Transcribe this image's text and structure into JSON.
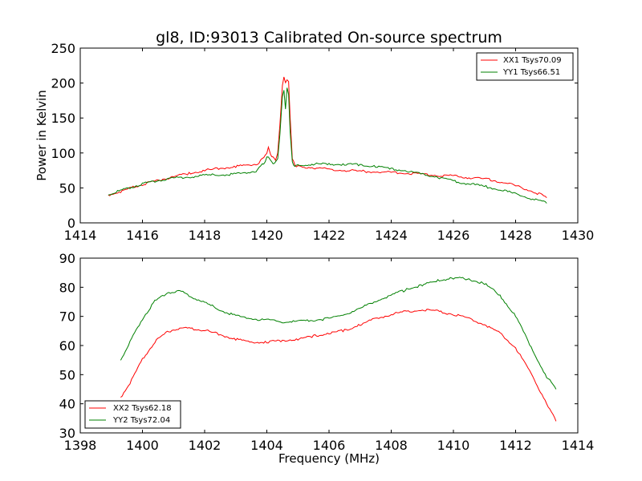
{
  "chart_data": [
    {
      "type": "line",
      "title": "gl8, ID:93013 Calibrated On-source spectrum",
      "xlabel": "",
      "ylabel": "Power in Kelvin",
      "xlim": [
        1414,
        1430
      ],
      "ylim": [
        0,
        250
      ],
      "xticks": [
        1414,
        1416,
        1418,
        1420,
        1422,
        1424,
        1426,
        1428,
        1430
      ],
      "yticks": [
        0,
        50,
        100,
        150,
        200,
        250
      ],
      "grid": false,
      "legend_position": "top-right",
      "series": [
        {
          "name": "XX1 Tsys70.09",
          "color": "#ff0000",
          "points": [
            [
              1414.9,
              39
            ],
            [
              1415.3,
              44
            ],
            [
              1415.7,
              50
            ],
            [
              1416.1,
              55
            ],
            [
              1416.5,
              60
            ],
            [
              1417.0,
              65
            ],
            [
              1417.5,
              70
            ],
            [
              1418.0,
              74
            ],
            [
              1418.5,
              77
            ],
            [
              1419.0,
              80
            ],
            [
              1419.4,
              82
            ],
            [
              1419.7,
              84
            ],
            [
              1419.9,
              92
            ],
            [
              1420.0,
              100
            ],
            [
              1420.05,
              106
            ],
            [
              1420.12,
              98
            ],
            [
              1420.2,
              92
            ],
            [
              1420.28,
              90
            ],
            [
              1420.35,
              98
            ],
            [
              1420.42,
              140
            ],
            [
              1420.5,
              195
            ],
            [
              1420.55,
              208
            ],
            [
              1420.6,
              198
            ],
            [
              1420.65,
              205
            ],
            [
              1420.7,
              200
            ],
            [
              1420.75,
              150
            ],
            [
              1420.82,
              90
            ],
            [
              1420.9,
              82
            ],
            [
              1421.0,
              80
            ],
            [
              1421.5,
              78
            ],
            [
              1422.0,
              76
            ],
            [
              1422.5,
              74
            ],
            [
              1423.0,
              73
            ],
            [
              1423.5,
              72
            ],
            [
              1424.0,
              71
            ],
            [
              1424.5,
              70
            ],
            [
              1425.0,
              69
            ],
            [
              1425.5,
              67
            ],
            [
              1426.0,
              66
            ],
            [
              1426.5,
              64
            ],
            [
              1427.0,
              62
            ],
            [
              1427.5,
              58
            ],
            [
              1428.0,
              52
            ],
            [
              1428.5,
              45
            ],
            [
              1429.0,
              36
            ]
          ]
        },
        {
          "name": "YY1 Tsys66.51",
          "color": "#008000",
          "points": [
            [
              1414.9,
              40
            ],
            [
              1415.3,
              45
            ],
            [
              1415.7,
              51
            ],
            [
              1416.1,
              56
            ],
            [
              1416.5,
              60
            ],
            [
              1417.0,
              63
            ],
            [
              1417.5,
              65
            ],
            [
              1418.0,
              67
            ],
            [
              1418.5,
              68
            ],
            [
              1419.0,
              69
            ],
            [
              1419.4,
              71
            ],
            [
              1419.7,
              74
            ],
            [
              1419.9,
              85
            ],
            [
              1420.0,
              92
            ],
            [
              1420.05,
              95
            ],
            [
              1420.12,
              88
            ],
            [
              1420.2,
              84
            ],
            [
              1420.28,
              86
            ],
            [
              1420.35,
              92
            ],
            [
              1420.42,
              125
            ],
            [
              1420.5,
              178
            ],
            [
              1420.55,
              190
            ],
            [
              1420.6,
              160
            ],
            [
              1420.65,
              194
            ],
            [
              1420.7,
              182
            ],
            [
              1420.75,
              130
            ],
            [
              1420.82,
              86
            ],
            [
              1420.9,
              81
            ],
            [
              1421.0,
              81
            ],
            [
              1421.5,
              83
            ],
            [
              1422.0,
              83
            ],
            [
              1422.5,
              83
            ],
            [
              1423.0,
              82
            ],
            [
              1423.5,
              80
            ],
            [
              1424.0,
              77
            ],
            [
              1424.5,
              73
            ],
            [
              1425.0,
              69
            ],
            [
              1425.5,
              64
            ],
            [
              1426.0,
              59
            ],
            [
              1426.5,
              55
            ],
            [
              1427.0,
              51
            ],
            [
              1427.5,
              47
            ],
            [
              1428.0,
              40
            ],
            [
              1428.5,
              34
            ],
            [
              1429.0,
              28
            ]
          ]
        }
      ]
    },
    {
      "type": "line",
      "title": "",
      "xlabel": "Frequency (MHz)",
      "ylabel": "",
      "xlim": [
        1398,
        1414
      ],
      "ylim": [
        30,
        90
      ],
      "xticks": [
        1398,
        1400,
        1402,
        1404,
        1406,
        1408,
        1410,
        1412,
        1414
      ],
      "yticks": [
        30,
        40,
        50,
        60,
        70,
        80,
        90
      ],
      "grid": false,
      "legend_position": "bottom-left",
      "series": [
        {
          "name": "XX2 Tsys62.18",
          "color": "#ff0000",
          "points": [
            [
              1399.3,
              42
            ],
            [
              1399.6,
              47
            ],
            [
              1400.0,
              55
            ],
            [
              1400.4,
              61
            ],
            [
              1400.8,
              64.5
            ],
            [
              1401.2,
              65.8
            ],
            [
              1401.6,
              65.5
            ],
            [
              1402.0,
              65
            ],
            [
              1402.5,
              63.5
            ],
            [
              1403.0,
              62
            ],
            [
              1403.5,
              61
            ],
            [
              1404.0,
              61
            ],
            [
              1404.5,
              61.5
            ],
            [
              1405.0,
              62
            ],
            [
              1405.5,
              63
            ],
            [
              1406.0,
              64
            ],
            [
              1406.5,
              65
            ],
            [
              1407.0,
              67
            ],
            [
              1407.5,
              69
            ],
            [
              1408.0,
              70.5
            ],
            [
              1408.5,
              71.5
            ],
            [
              1409.0,
              72
            ],
            [
              1409.5,
              71.5
            ],
            [
              1410.0,
              70.5
            ],
            [
              1410.5,
              69
            ],
            [
              1411.0,
              67
            ],
            [
              1411.5,
              64
            ],
            [
              1412.0,
              59
            ],
            [
              1412.5,
              50
            ],
            [
              1413.0,
              40
            ],
            [
              1413.3,
              34
            ]
          ]
        },
        {
          "name": "YY2 Tsys72.04",
          "color": "#008000",
          "points": [
            [
              1399.3,
              55
            ],
            [
              1399.6,
              61
            ],
            [
              1400.0,
              69
            ],
            [
              1400.4,
              75
            ],
            [
              1400.8,
              78
            ],
            [
              1401.2,
              78.5
            ],
            [
              1401.6,
              76.5
            ],
            [
              1402.0,
              74.5
            ],
            [
              1402.5,
              72
            ],
            [
              1403.0,
              70
            ],
            [
              1403.5,
              69
            ],
            [
              1404.0,
              68.5
            ],
            [
              1404.5,
              68
            ],
            [
              1405.0,
              68
            ],
            [
              1405.5,
              68.5
            ],
            [
              1406.0,
              69
            ],
            [
              1406.5,
              70.5
            ],
            [
              1407.0,
              72.5
            ],
            [
              1407.5,
              75
            ],
            [
              1408.0,
              77
            ],
            [
              1408.5,
              79
            ],
            [
              1409.0,
              80.5
            ],
            [
              1409.5,
              82
            ],
            [
              1410.0,
              83
            ],
            [
              1410.5,
              82.5
            ],
            [
              1411.0,
              81
            ],
            [
              1411.5,
              77
            ],
            [
              1412.0,
              70
            ],
            [
              1412.5,
              59
            ],
            [
              1413.0,
              49
            ],
            [
              1413.3,
              45
            ]
          ]
        }
      ]
    }
  ]
}
